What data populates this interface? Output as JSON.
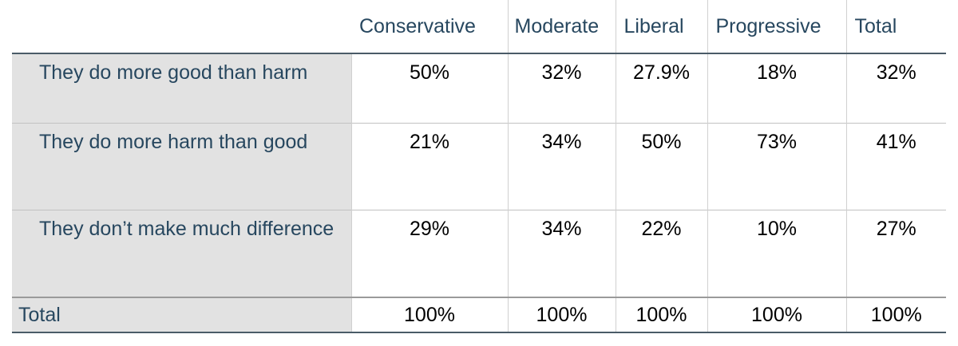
{
  "chart_data": {
    "type": "table",
    "columns": [
      "Conservative",
      "Moderate",
      "Liberal",
      "Progressive",
      "Total"
    ],
    "rows": [
      {
        "label": "They do more good than harm",
        "values": [
          "50%",
          "32%",
          "27.9%",
          "18%",
          "32%"
        ]
      },
      {
        "label": "They do more harm than good",
        "values": [
          "21%",
          "34%",
          "50%",
          "73%",
          "41%"
        ]
      },
      {
        "label": "They don’t make much difference",
        "values": [
          "29%",
          "34%",
          "22%",
          "10%",
          "27%"
        ]
      }
    ],
    "total": {
      "label": "Total",
      "values": [
        "100%",
        "100%",
        "100%",
        "100%",
        "100%"
      ]
    }
  }
}
